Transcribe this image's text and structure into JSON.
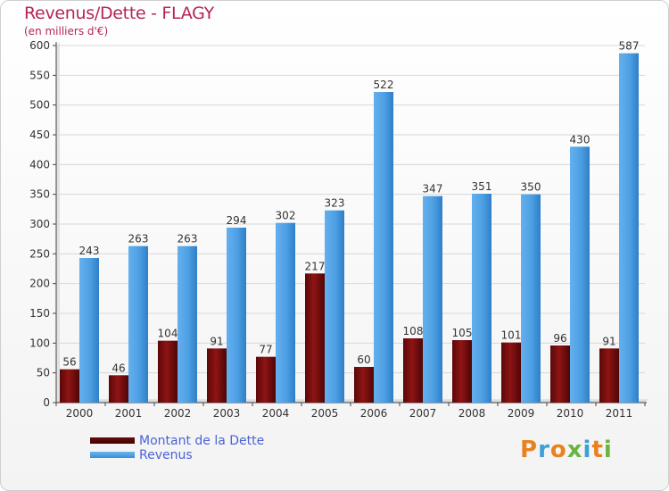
{
  "title": "Revenus/Dette - FLAGY",
  "subtitle": "(en milliers d'€)",
  "chart_data": {
    "type": "bar",
    "categories": [
      "2000",
      "2001",
      "2002",
      "2003",
      "2004",
      "2005",
      "2006",
      "2007",
      "2008",
      "2009",
      "2010",
      "2011"
    ],
    "series": [
      {
        "name": "Montant de la Dette",
        "color": "#8b1111",
        "values": [
          56,
          46,
          104,
          91,
          77,
          217,
          60,
          108,
          105,
          101,
          96,
          91
        ]
      },
      {
        "name": "Revenus",
        "color": "#4d9fe3",
        "values": [
          243,
          263,
          263,
          294,
          302,
          323,
          522,
          347,
          351,
          350,
          430,
          587
        ]
      }
    ],
    "yticks": [
      0,
      50,
      100,
      150,
      200,
      250,
      300,
      350,
      400,
      450,
      500,
      550,
      600
    ],
    "ylim": [
      0,
      600
    ],
    "grid": true
  },
  "legend": {
    "debt_label": "Montant de la Dette",
    "revenue_label": "Revenus"
  },
  "logo": {
    "letters": [
      "P",
      "r",
      "o",
      "x",
      "i",
      "t",
      "i"
    ],
    "colors": [
      "#e8821e",
      "#3c9fd8",
      "#e8821e",
      "#6cb33f",
      "#3c9fd8",
      "#e8821e",
      "#6cb33f"
    ]
  }
}
